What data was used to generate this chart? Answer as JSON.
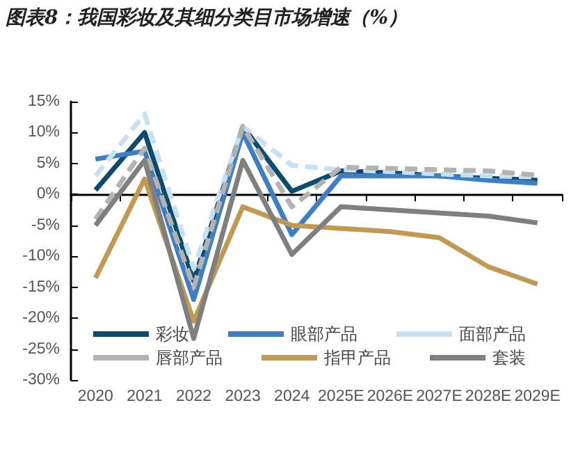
{
  "chart_data": {
    "type": "line",
    "title": "图表8：我国彩妆及其细分类目市场增速（%）",
    "categories": [
      "2020",
      "2021",
      "2022",
      "2023",
      "2024",
      "2025E",
      "2026E",
      "2027E",
      "2028E",
      "2029E"
    ],
    "series": [
      {
        "name": "彩妆",
        "color": "#0d4a6b",
        "line_style": "solid",
        "values": [
          0.7,
          10,
          -14,
          11,
          0.5,
          3.8,
          3.5,
          3,
          2.6,
          2.3
        ]
      },
      {
        "name": "眼部产品",
        "color": "#3f7fc1",
        "line_style": "solid",
        "values": [
          5.7,
          7,
          -17,
          10,
          -6.5,
          3,
          3,
          3,
          2.3,
          1.8
        ]
      },
      {
        "name": "面部产品",
        "color": "#c9dff2",
        "line_style": "dashed",
        "values": [
          3,
          13,
          -12,
          11,
          4.7,
          4,
          3.7,
          3.3,
          3,
          2.8
        ]
      },
      {
        "name": "唇部产品",
        "color": "#b3b3b3",
        "line_style": "dashed",
        "values": [
          -4,
          7.5,
          -15,
          11,
          -2,
          4.4,
          4.2,
          4,
          3.8,
          3.1
        ]
      },
      {
        "name": "指甲产品",
        "color": "#c09a55",
        "line_style": "solid",
        "values": [
          -13.5,
          2.5,
          -20.5,
          -2,
          -5,
          -5.5,
          -6,
          -7,
          -11.7,
          -14.5
        ]
      },
      {
        "name": "套装",
        "color": "#7f7f7f",
        "line_style": "solid",
        "values": [
          -5,
          5.5,
          -23.3,
          5.5,
          -9.7,
          -2,
          -2.5,
          -3,
          -3.5,
          -4.6
        ]
      }
    ],
    "ylim": [
      -30,
      15
    ],
    "yticks": [
      {
        "value": -30,
        "label": "-30%"
      },
      {
        "value": -25,
        "label": "-25%"
      },
      {
        "value": -20,
        "label": "-20%"
      },
      {
        "value": -15,
        "label": "-15%"
      },
      {
        "value": -10,
        "label": "-10%"
      },
      {
        "value": -5,
        "label": "-5%"
      },
      {
        "value": 0,
        "label": "0%"
      },
      {
        "value": 5,
        "label": "5%"
      },
      {
        "value": 10,
        "label": "10%"
      },
      {
        "value": 15,
        "label": "15%"
      }
    ],
    "ref_lines": [
      {
        "axis": "y",
        "value": 0,
        "color": "#000000"
      }
    ],
    "grid": false,
    "legend": "bottom",
    "marker": "none"
  }
}
